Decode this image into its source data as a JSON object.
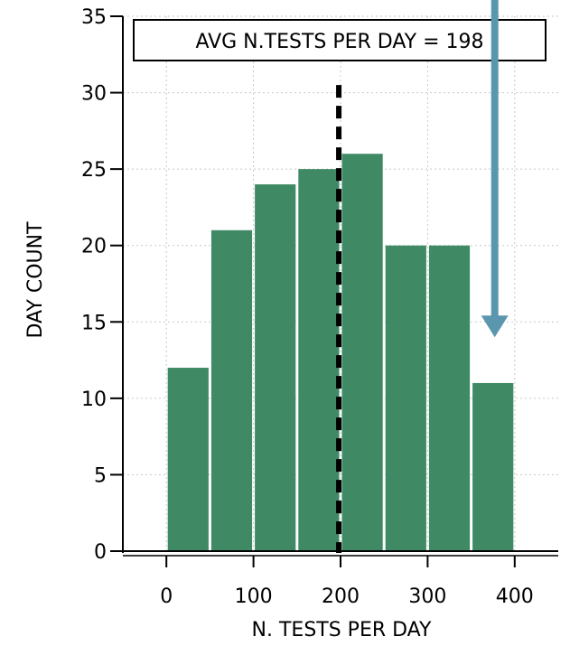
{
  "chart_data": {
    "type": "bar",
    "title": "",
    "xlabel": "N. TESTS PER DAY",
    "ylabel": "DAY COUNT",
    "xlim": [
      -50,
      450
    ],
    "ylim": [
      0,
      35
    ],
    "xticks": [
      0,
      100,
      200,
      300,
      400
    ],
    "yticks": [
      0,
      5,
      10,
      15,
      20,
      25,
      30,
      35
    ],
    "grid": true,
    "bins": [
      {
        "x0": 0,
        "x1": 50,
        "value": 12
      },
      {
        "x0": 50,
        "x1": 100,
        "value": 21
      },
      {
        "x0": 100,
        "x1": 150,
        "value": 24
      },
      {
        "x0": 150,
        "x1": 200,
        "value": 25
      },
      {
        "x0": 200,
        "x1": 250,
        "value": 26
      },
      {
        "x0": 250,
        "x1": 300,
        "value": 20
      },
      {
        "x0": 300,
        "x1": 350,
        "value": 20
      },
      {
        "x0": 350,
        "x1": 400,
        "value": 11
      }
    ],
    "mean_line": {
      "x": 198
    },
    "annotation_label": "AVG N.TESTS PER DAY = 198",
    "arrow": {
      "x": 375,
      "y_end": 14,
      "direction": "down"
    }
  },
  "colors": {
    "bar": "#3f8a65",
    "bar_edge": "#ffffff",
    "grid": "#c8c8c8",
    "axis": "#000000",
    "mean_line": "#000000",
    "arrow": "#5a97ae",
    "annotation_box": "#000000"
  }
}
